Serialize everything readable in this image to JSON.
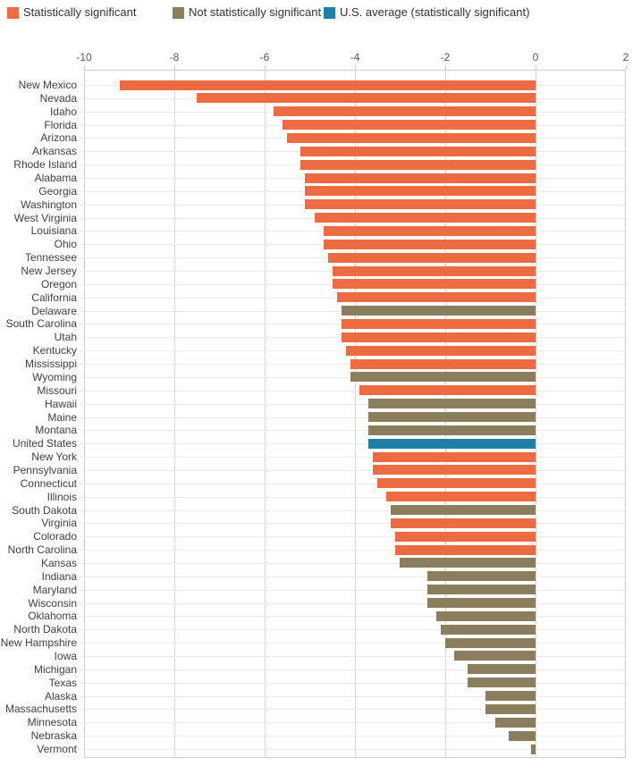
{
  "legend": {
    "items": [
      {
        "key": "significant",
        "label": "Statistically significant"
      },
      {
        "key": "not_significant",
        "label": "Not statistically significant"
      },
      {
        "key": "us_average",
        "label": "U.S. average (statistically significant)"
      }
    ]
  },
  "chart_data": {
    "type": "bar",
    "orientation": "horizontal",
    "title": "",
    "xlabel": "",
    "ylabel": "",
    "xlim": [
      -10,
      2
    ],
    "x_ticks": [
      -10,
      -8,
      -6,
      -4,
      -2,
      0,
      2
    ],
    "grid": "on",
    "legend_position": "top",
    "colors": {
      "significant": "#ec6b42",
      "not_significant": "#8a7e5e",
      "us_average": "#1f7fa6"
    },
    "categories": [
      "New Mexico",
      "Nevada",
      "Idaho",
      "Florida",
      "Arizona",
      "Arkansas",
      "Rhode Island",
      "Alabama",
      "Georgia",
      "Washington",
      "West Virginia",
      "Louisiana",
      "Ohio",
      "Tennessee",
      "New Jersey",
      "Oregon",
      "California",
      "Delaware",
      "South Carolina",
      "Utah",
      "Kentucky",
      "Mississippi",
      "Wyoming",
      "Missouri",
      "Hawaii",
      "Maine",
      "Montana",
      "United States",
      "New York",
      "Pennsylvania",
      "Connecticut",
      "Illinois",
      "South Dakota",
      "Virginia",
      "Colorado",
      "North Carolina",
      "Kansas",
      "Indiana",
      "Maryland",
      "Wisconsin",
      "Oklahoma",
      "North Dakota",
      "New Hampshire",
      "Iowa",
      "Michigan",
      "Texas",
      "Alaska",
      "Massachusetts",
      "Minnesota",
      "Nebraska",
      "Vermont"
    ],
    "series": [
      {
        "name": "Change",
        "points": [
          {
            "name": "New Mexico",
            "value": -9.2,
            "category": "significant"
          },
          {
            "name": "Nevada",
            "value": -7.5,
            "category": "significant"
          },
          {
            "name": "Idaho",
            "value": -5.8,
            "category": "significant"
          },
          {
            "name": "Florida",
            "value": -5.6,
            "category": "significant"
          },
          {
            "name": "Arizona",
            "value": -5.5,
            "category": "significant"
          },
          {
            "name": "Arkansas",
            "value": -5.2,
            "category": "significant"
          },
          {
            "name": "Rhode Island",
            "value": -5.2,
            "category": "significant"
          },
          {
            "name": "Alabama",
            "value": -5.1,
            "category": "significant"
          },
          {
            "name": "Georgia",
            "value": -5.1,
            "category": "significant"
          },
          {
            "name": "Washington",
            "value": -5.1,
            "category": "significant"
          },
          {
            "name": "West Virginia",
            "value": -4.9,
            "category": "significant"
          },
          {
            "name": "Louisiana",
            "value": -4.7,
            "category": "significant"
          },
          {
            "name": "Ohio",
            "value": -4.7,
            "category": "significant"
          },
          {
            "name": "Tennessee",
            "value": -4.6,
            "category": "significant"
          },
          {
            "name": "New Jersey",
            "value": -4.5,
            "category": "significant"
          },
          {
            "name": "Oregon",
            "value": -4.5,
            "category": "significant"
          },
          {
            "name": "California",
            "value": -4.4,
            "category": "significant"
          },
          {
            "name": "Delaware",
            "value": -4.3,
            "category": "not_significant"
          },
          {
            "name": "South Carolina",
            "value": -4.3,
            "category": "significant"
          },
          {
            "name": "Utah",
            "value": -4.3,
            "category": "significant"
          },
          {
            "name": "Kentucky",
            "value": -4.2,
            "category": "significant"
          },
          {
            "name": "Mississippi",
            "value": -4.1,
            "category": "significant"
          },
          {
            "name": "Wyoming",
            "value": -4.1,
            "category": "not_significant"
          },
          {
            "name": "Missouri",
            "value": -3.9,
            "category": "significant"
          },
          {
            "name": "Hawaii",
            "value": -3.7,
            "category": "not_significant"
          },
          {
            "name": "Maine",
            "value": -3.7,
            "category": "not_significant"
          },
          {
            "name": "Montana",
            "value": -3.7,
            "category": "not_significant"
          },
          {
            "name": "United States",
            "value": -3.7,
            "category": "us_average"
          },
          {
            "name": "New York",
            "value": -3.6,
            "category": "significant"
          },
          {
            "name": "Pennsylvania",
            "value": -3.6,
            "category": "significant"
          },
          {
            "name": "Connecticut",
            "value": -3.5,
            "category": "significant"
          },
          {
            "name": "Illinois",
            "value": -3.3,
            "category": "significant"
          },
          {
            "name": "South Dakota",
            "value": -3.2,
            "category": "not_significant"
          },
          {
            "name": "Virginia",
            "value": -3.2,
            "category": "significant"
          },
          {
            "name": "Colorado",
            "value": -3.1,
            "category": "significant"
          },
          {
            "name": "North Carolina",
            "value": -3.1,
            "category": "significant"
          },
          {
            "name": "Kansas",
            "value": -3.0,
            "category": "not_significant"
          },
          {
            "name": "Indiana",
            "value": -2.4,
            "category": "not_significant"
          },
          {
            "name": "Maryland",
            "value": -2.4,
            "category": "not_significant"
          },
          {
            "name": "Wisconsin",
            "value": -2.4,
            "category": "not_significant"
          },
          {
            "name": "Oklahoma",
            "value": -2.2,
            "category": "not_significant"
          },
          {
            "name": "North Dakota",
            "value": -2.1,
            "category": "not_significant"
          },
          {
            "name": "New Hampshire",
            "value": -2.0,
            "category": "not_significant"
          },
          {
            "name": "Iowa",
            "value": -1.8,
            "category": "not_significant"
          },
          {
            "name": "Michigan",
            "value": -1.5,
            "category": "not_significant"
          },
          {
            "name": "Texas",
            "value": -1.5,
            "category": "not_significant"
          },
          {
            "name": "Alaska",
            "value": -1.1,
            "category": "not_significant"
          },
          {
            "name": "Massachusetts",
            "value": -1.1,
            "category": "not_significant"
          },
          {
            "name": "Minnesota",
            "value": -0.9,
            "category": "not_significant"
          },
          {
            "name": "Nebraska",
            "value": -0.6,
            "category": "not_significant"
          },
          {
            "name": "Vermont",
            "value": -0.1,
            "category": "not_significant"
          }
        ]
      }
    ]
  }
}
